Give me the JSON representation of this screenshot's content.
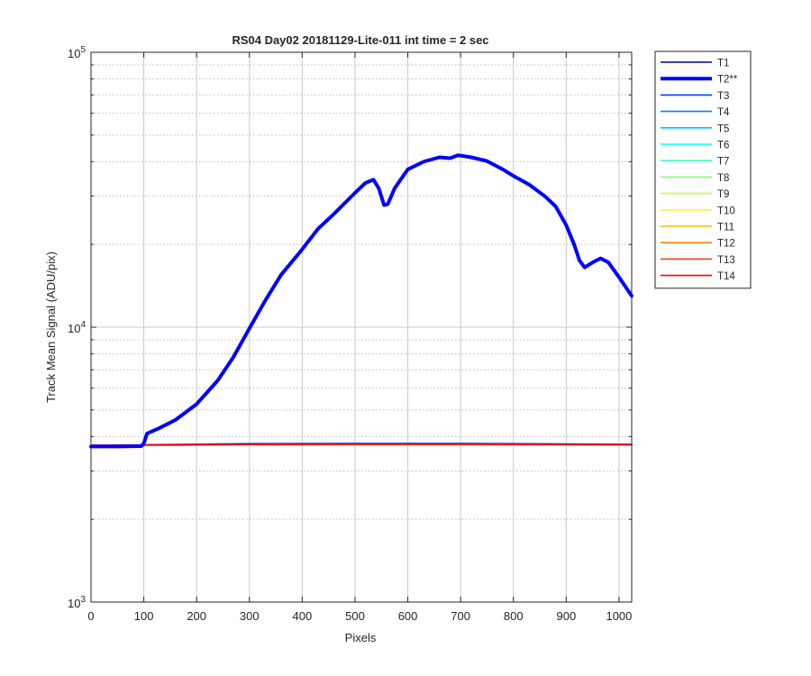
{
  "chart_data": {
    "type": "line",
    "title": "RS04 Day02 20181129-Lite-011 int time = 2 sec",
    "xlabel": "Pixels",
    "ylabel": "Track Mean Signal (ADU/pix)",
    "xlim": [
      0,
      1024
    ],
    "ylim": [
      1000,
      100000
    ],
    "yscale": "log",
    "grid": true,
    "legend_position": "outside-top-right",
    "x_ticks": [
      0,
      100,
      200,
      300,
      400,
      500,
      600,
      700,
      800,
      900,
      1000
    ],
    "y_tick_labels": [
      {
        "value": 1000,
        "base": "10",
        "exp": "3"
      },
      {
        "value": 10000,
        "base": "10",
        "exp": "4"
      },
      {
        "value": 100000,
        "base": "10",
        "exp": "5"
      }
    ],
    "series": [
      {
        "name": "T1",
        "color": "#00008f",
        "thick": false,
        "points": [
          [
            0,
            3700
          ],
          [
            90,
            3710
          ],
          [
            100,
            3730
          ],
          [
            200,
            3740
          ],
          [
            300,
            3750
          ],
          [
            400,
            3755
          ],
          [
            500,
            3760
          ],
          [
            600,
            3760
          ],
          [
            700,
            3760
          ],
          [
            800,
            3755
          ],
          [
            900,
            3750
          ],
          [
            1024,
            3745
          ]
        ]
      },
      {
        "name": "T2**",
        "color": "#0000ff",
        "thick": true,
        "points": [
          [
            0,
            3680
          ],
          [
            50,
            3680
          ],
          [
            95,
            3690
          ],
          [
            100,
            3780
          ],
          [
            106,
            4100
          ],
          [
            130,
            4300
          ],
          [
            160,
            4600
          ],
          [
            200,
            5250
          ],
          [
            240,
            6400
          ],
          [
            270,
            7800
          ],
          [
            300,
            9900
          ],
          [
            330,
            12500
          ],
          [
            360,
            15500
          ],
          [
            400,
            19200
          ],
          [
            430,
            22800
          ],
          [
            460,
            25800
          ],
          [
            480,
            28200
          ],
          [
            500,
            30800
          ],
          [
            520,
            33500
          ],
          [
            535,
            34400
          ],
          [
            545,
            32000
          ],
          [
            555,
            27800
          ],
          [
            562,
            28000
          ],
          [
            575,
            32000
          ],
          [
            600,
            37500
          ],
          [
            630,
            40000
          ],
          [
            660,
            41500
          ],
          [
            680,
            41200
          ],
          [
            695,
            42200
          ],
          [
            720,
            41500
          ],
          [
            750,
            40200
          ],
          [
            780,
            37500
          ],
          [
            800,
            35500
          ],
          [
            830,
            33000
          ],
          [
            860,
            29900
          ],
          [
            880,
            27500
          ],
          [
            900,
            23500
          ],
          [
            915,
            20000
          ],
          [
            925,
            17500
          ],
          [
            935,
            16500
          ],
          [
            950,
            17200
          ],
          [
            965,
            17800
          ],
          [
            980,
            17200
          ],
          [
            1000,
            15200
          ],
          [
            1024,
            13000
          ]
        ]
      },
      {
        "name": "T3",
        "color": "#0040ff",
        "thick": false,
        "points": [
          [
            0,
            3690
          ],
          [
            95,
            3700
          ],
          [
            110,
            3740
          ],
          [
            200,
            3755
          ],
          [
            300,
            3770
          ],
          [
            400,
            3775
          ],
          [
            500,
            3780
          ],
          [
            600,
            3780
          ],
          [
            700,
            3780
          ],
          [
            800,
            3770
          ],
          [
            900,
            3760
          ],
          [
            1024,
            3750
          ]
        ]
      },
      {
        "name": "T4",
        "color": "#0080ff",
        "thick": false,
        "points": [
          [
            0,
            3700
          ],
          [
            100,
            3710
          ],
          [
            200,
            3730
          ],
          [
            300,
            3740
          ],
          [
            400,
            3745
          ],
          [
            500,
            3745
          ],
          [
            600,
            3745
          ],
          [
            700,
            3745
          ],
          [
            800,
            3740
          ],
          [
            900,
            3735
          ],
          [
            1024,
            3730
          ]
        ]
      },
      {
        "name": "T5",
        "color": "#00bfff",
        "thick": false,
        "points": [
          [
            0,
            3710
          ],
          [
            100,
            3715
          ],
          [
            200,
            3725
          ],
          [
            300,
            3735
          ],
          [
            400,
            3740
          ],
          [
            500,
            3742
          ],
          [
            600,
            3742
          ],
          [
            700,
            3742
          ],
          [
            800,
            3738
          ],
          [
            900,
            3732
          ],
          [
            1024,
            3728
          ]
        ]
      },
      {
        "name": "T6",
        "color": "#00ffff",
        "thick": false,
        "points": [
          [
            0,
            3712
          ],
          [
            100,
            3718
          ],
          [
            200,
            3728
          ],
          [
            300,
            3736
          ],
          [
            400,
            3740
          ],
          [
            500,
            3742
          ],
          [
            600,
            3742
          ],
          [
            700,
            3742
          ],
          [
            800,
            3738
          ],
          [
            900,
            3733
          ],
          [
            1024,
            3729
          ]
        ]
      },
      {
        "name": "T7",
        "color": "#40ffbf",
        "thick": false,
        "points": [
          [
            0,
            3714
          ],
          [
            100,
            3720
          ],
          [
            200,
            3729
          ],
          [
            300,
            3737
          ],
          [
            400,
            3741
          ],
          [
            500,
            3743
          ],
          [
            600,
            3743
          ],
          [
            700,
            3743
          ],
          [
            800,
            3739
          ],
          [
            900,
            3734
          ],
          [
            1024,
            3730
          ]
        ]
      },
      {
        "name": "T8",
        "color": "#80ff80",
        "thick": false,
        "points": [
          [
            0,
            3715
          ],
          [
            100,
            3721
          ],
          [
            200,
            3730
          ],
          [
            300,
            3737
          ],
          [
            400,
            3741
          ],
          [
            500,
            3743
          ],
          [
            600,
            3743
          ],
          [
            700,
            3743
          ],
          [
            800,
            3739
          ],
          [
            900,
            3734
          ],
          [
            1024,
            3730
          ]
        ]
      },
      {
        "name": "T9",
        "color": "#bfff40",
        "thick": false,
        "points": [
          [
            0,
            3716
          ],
          [
            100,
            3722
          ],
          [
            200,
            3731
          ],
          [
            300,
            3738
          ],
          [
            400,
            3742
          ],
          [
            500,
            3744
          ],
          [
            600,
            3744
          ],
          [
            700,
            3744
          ],
          [
            800,
            3740
          ],
          [
            900,
            3735
          ],
          [
            1024,
            3731
          ]
        ]
      },
      {
        "name": "T10",
        "color": "#ffff00",
        "thick": false,
        "points": [
          [
            0,
            3717
          ],
          [
            100,
            3723
          ],
          [
            200,
            3732
          ],
          [
            300,
            3738
          ],
          [
            400,
            3742
          ],
          [
            500,
            3744
          ],
          [
            600,
            3744
          ],
          [
            700,
            3744
          ],
          [
            800,
            3740
          ],
          [
            900,
            3735
          ],
          [
            1024,
            3731
          ]
        ]
      },
      {
        "name": "T11",
        "color": "#ffbf00",
        "thick": false,
        "points": [
          [
            0,
            3718
          ],
          [
            100,
            3724
          ],
          [
            200,
            3732
          ],
          [
            300,
            3739
          ],
          [
            400,
            3743
          ],
          [
            500,
            3745
          ],
          [
            600,
            3745
          ],
          [
            700,
            3745
          ],
          [
            800,
            3741
          ],
          [
            900,
            3736
          ],
          [
            1024,
            3732
          ]
        ]
      },
      {
        "name": "T12",
        "color": "#ff8000",
        "thick": false,
        "points": [
          [
            0,
            3719
          ],
          [
            100,
            3725
          ],
          [
            200,
            3733
          ],
          [
            300,
            3740
          ],
          [
            400,
            3744
          ],
          [
            500,
            3746
          ],
          [
            600,
            3746
          ],
          [
            700,
            3746
          ],
          [
            800,
            3742
          ],
          [
            900,
            3737
          ],
          [
            1024,
            3733
          ]
        ]
      },
      {
        "name": "T13",
        "color": "#ff4000",
        "thick": false,
        "points": [
          [
            0,
            3720
          ],
          [
            100,
            3726
          ],
          [
            200,
            3734
          ],
          [
            300,
            3741
          ],
          [
            400,
            3745
          ],
          [
            500,
            3747
          ],
          [
            600,
            3747
          ],
          [
            700,
            3747
          ],
          [
            800,
            3743
          ],
          [
            900,
            3738
          ],
          [
            1024,
            3734
          ]
        ]
      },
      {
        "name": "T14",
        "color": "#ff0000",
        "thick": false,
        "points": [
          [
            0,
            3722
          ],
          [
            100,
            3728
          ],
          [
            200,
            3735
          ],
          [
            300,
            3742
          ],
          [
            400,
            3746
          ],
          [
            500,
            3748
          ],
          [
            600,
            3748
          ],
          [
            700,
            3748
          ],
          [
            800,
            3744
          ],
          [
            900,
            3739
          ],
          [
            1024,
            3735
          ]
        ]
      }
    ]
  }
}
